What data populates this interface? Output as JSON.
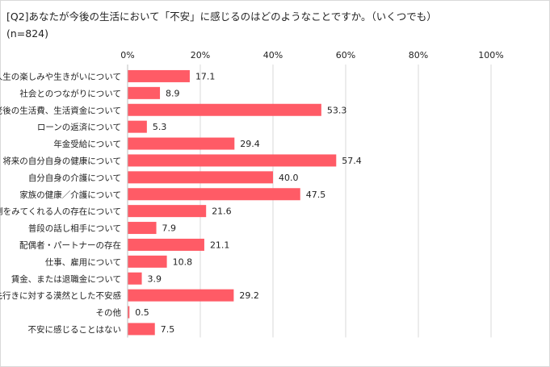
{
  "chart_data": {
    "type": "bar",
    "orientation": "horizontal",
    "title": "[Q2]あなたが今後の生活において「不安」に感じるのはどのようなことですか。（いくつでも）",
    "subtitle": "(n=824)",
    "xlim": [
      0,
      100
    ],
    "xticks": [
      "0%",
      "20%",
      "40%",
      "60%",
      "80%",
      "100%"
    ],
    "xtick_values": [
      0,
      20,
      40,
      60,
      80,
      100
    ],
    "grid": "vertical",
    "categories": [
      "人生の楽しみや生きがいについて",
      "社会とのつながりについて",
      "老後の生活費、生活資金について",
      "ローンの返済について",
      "年金受給について",
      "将来の自分自身の健康について",
      "自分自身の介護について",
      "家族の健康／介護について",
      "面倒をみてくれる人の存在について",
      "普段の話し相手について",
      "配偶者・パートナーの存在",
      "仕事、雇用について",
      "賃金、または退職金について",
      "先行きに対する漠然とした不安感",
      "その他",
      "不安に感じることはない"
    ],
    "values": [
      17.1,
      8.9,
      53.3,
      5.3,
      29.4,
      57.4,
      40.0,
      47.5,
      21.6,
      7.9,
      21.1,
      10.8,
      3.9,
      29.2,
      0.5,
      7.5
    ],
    "value_labels": [
      "17.1",
      "8.9",
      "53.3",
      "5.3",
      "29.4",
      "57.4",
      "40.0",
      "47.5",
      "21.6",
      "7.9",
      "21.1",
      "10.8",
      "3.9",
      "29.2",
      "0.5",
      "7.5"
    ],
    "bar_color": "#ff5b66",
    "grid_color": "#d9d9d9"
  }
}
